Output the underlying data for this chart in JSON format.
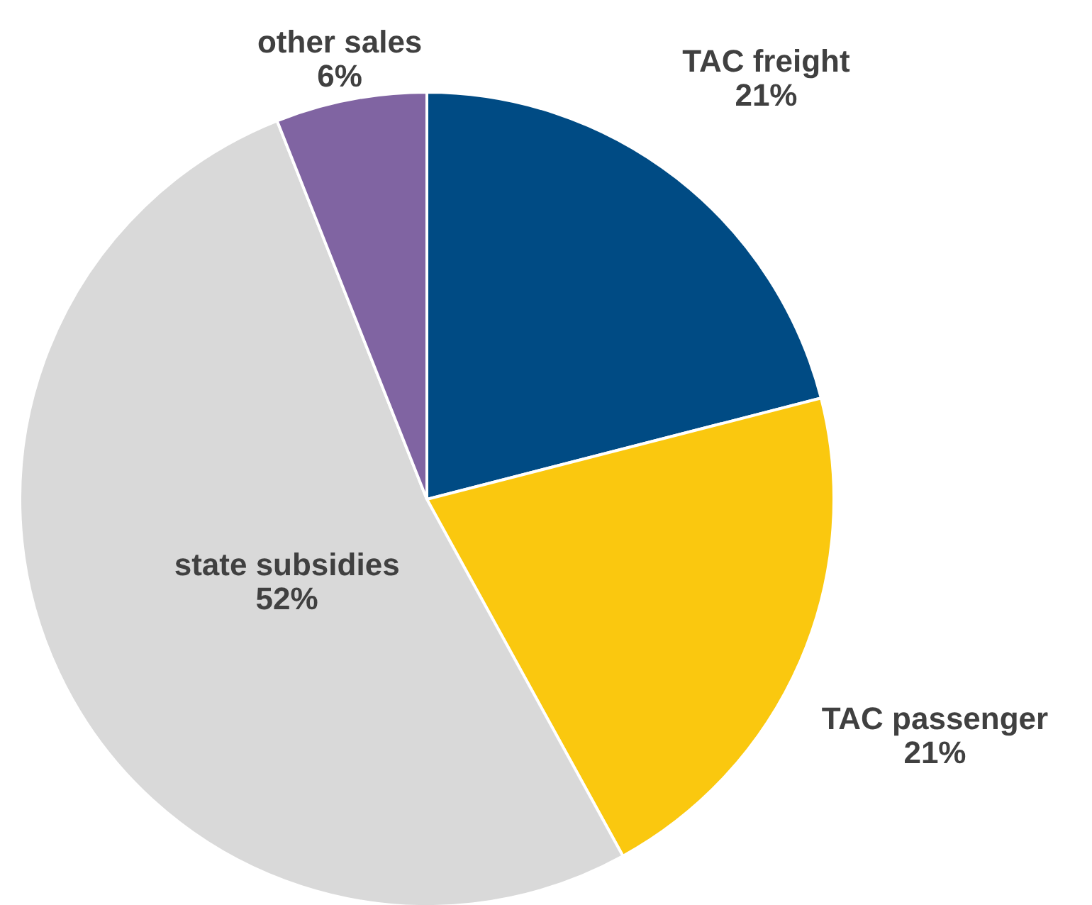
{
  "chart_data": {
    "type": "pie",
    "categories": [
      "TAC freight",
      "TAC passenger",
      "state subsidies",
      "other sales"
    ],
    "values": [
      21,
      21,
      52,
      6
    ],
    "colors": [
      "#004b84",
      "#fac80f",
      "#d9d9d9",
      "#8064a2"
    ],
    "value_labels": [
      "21%",
      "21%",
      "52%",
      "6%"
    ]
  }
}
